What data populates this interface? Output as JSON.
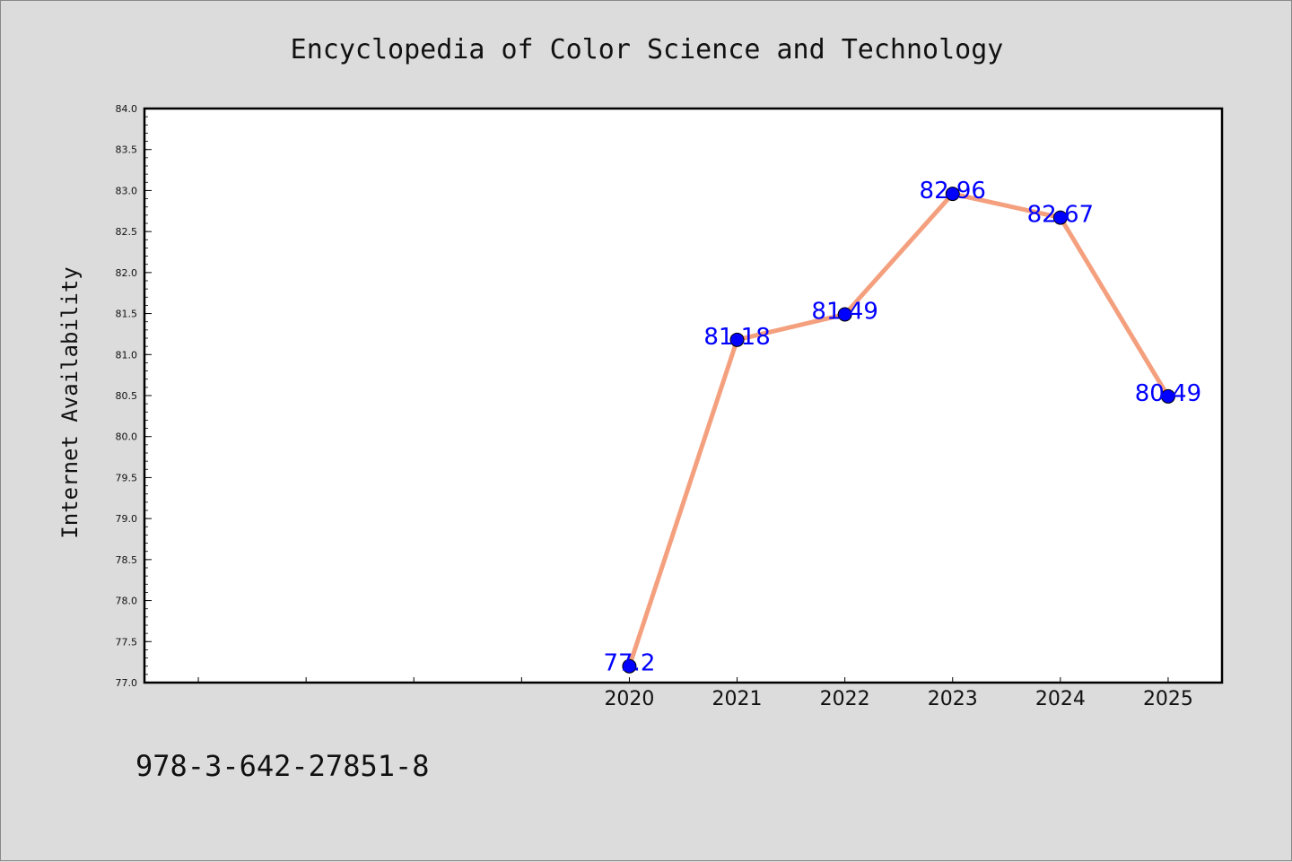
{
  "chart_data": {
    "type": "line",
    "title": "Encyclopedia of Color Science and Technology",
    "xlabel": "",
    "ylabel": "Internet Availability",
    "x": [
      "2020",
      "2021",
      "2022",
      "2023",
      "2024",
      "2025"
    ],
    "series": [
      {
        "values": [
          77.2,
          81.18,
          81.49,
          82.96,
          82.67,
          80.49
        ],
        "labels": [
          "77.2",
          "81.18",
          "81.49",
          "82.96",
          "82.67",
          "80.49"
        ],
        "line_color": "#f4a07e",
        "marker_color": "#0000ff"
      }
    ],
    "ylim": [
      77.0,
      84.0
    ],
    "y_ticks": [
      "77.0",
      "77.5",
      "78.0",
      "78.5",
      "79.0",
      "79.5",
      "80.0",
      "80.5",
      "81.0",
      "81.5",
      "82.0",
      "82.5",
      "83.0",
      "83.5",
      "84.0"
    ],
    "x_slots": 10,
    "x_first_slot": 4,
    "grid": false,
    "legend": "none"
  },
  "footer": {
    "isbn": "978-3-642-27851-8"
  }
}
